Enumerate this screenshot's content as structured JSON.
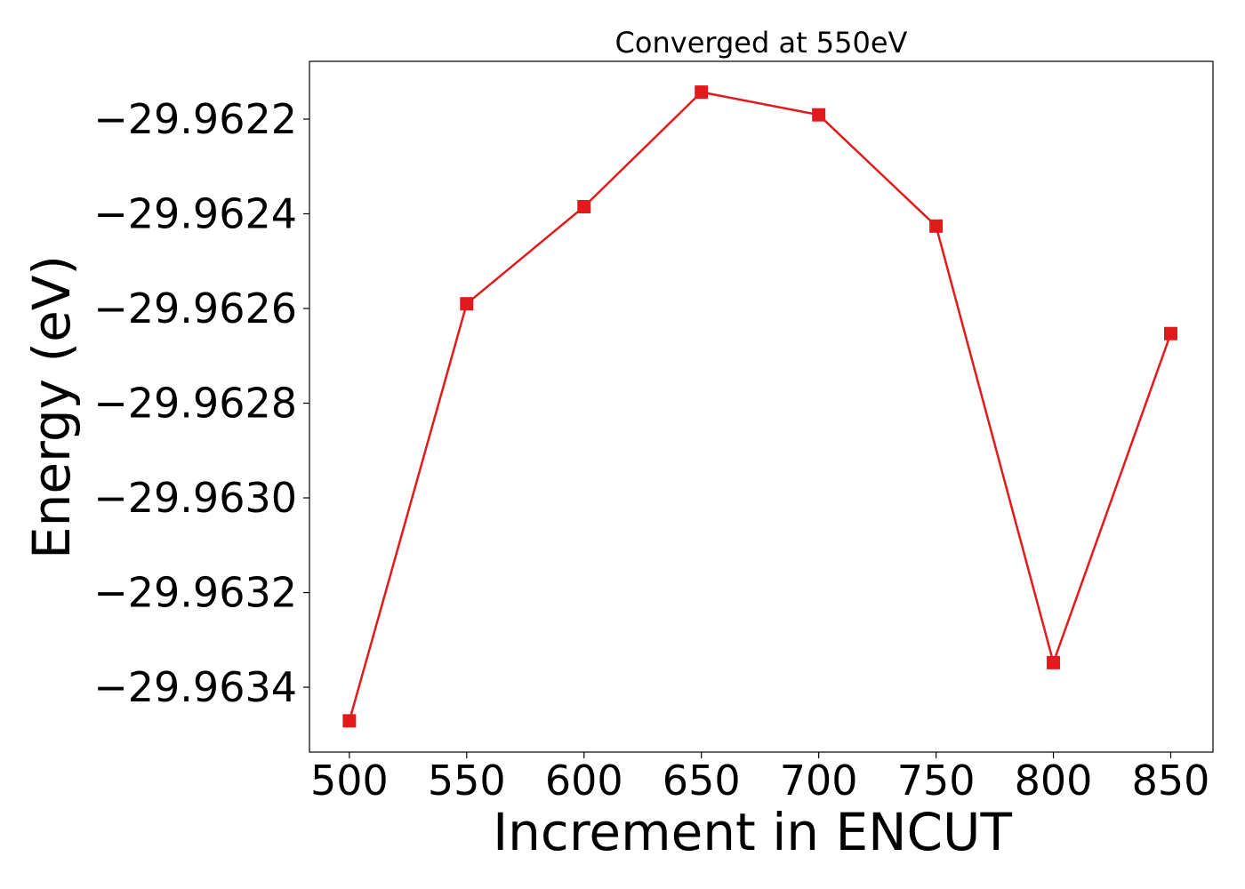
{
  "chart_data": {
    "type": "line",
    "title": "Converged at 550eV",
    "xlabel": "Increment in ENCUT",
    "ylabel": "Energy (eV)",
    "x": [
      500,
      550,
      600,
      650,
      700,
      750,
      800,
      850
    ],
    "series": [
      {
        "values": [
          -29.963471,
          -29.96259,
          -29.962385,
          -29.962143,
          -29.962191,
          -29.962426,
          -29.963348,
          -29.962653
        ],
        "color": "#e31a1c",
        "marker": "square"
      }
    ],
    "xlim": [
      483,
      868
    ],
    "ylim": [
      -29.963537,
      -29.962078
    ],
    "xticks": [
      500,
      550,
      600,
      650,
      700,
      750,
      800,
      850
    ],
    "xtick_labels": [
      "500",
      "550",
      "600",
      "650",
      "700",
      "750",
      "800",
      "850"
    ],
    "yticks": [
      -29.9634,
      -29.9632,
      -29.963,
      -29.9628,
      -29.9626,
      -29.9624,
      -29.9622
    ],
    "ytick_labels": [
      "−29.9634",
      "−29.9632",
      "−29.9630",
      "−29.9628",
      "−29.9626",
      "−29.9624",
      "−29.9622"
    ],
    "grid": false,
    "legend": "none"
  }
}
